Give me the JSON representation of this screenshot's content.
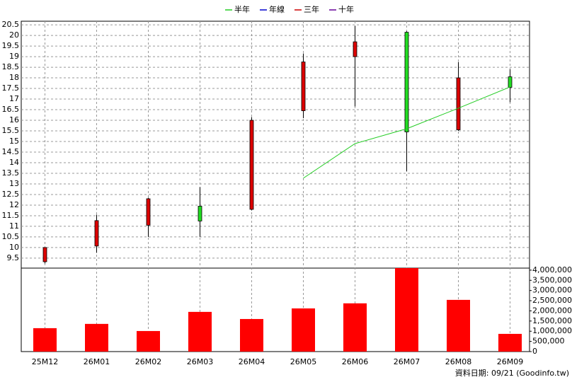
{
  "chart_data": [
    {
      "type": "candlestick",
      "categories": [
        "25M12",
        "26M01",
        "26M02",
        "26M03",
        "26M04",
        "26M05",
        "26M06",
        "26M07",
        "26M08",
        "26M09"
      ],
      "open": [
        9.33,
        10.07,
        11.05,
        11.95,
        11.8,
        16.45,
        19.0,
        20.15,
        15.55,
        18.05
      ],
      "high": [
        10.0,
        11.55,
        12.35,
        12.85,
        16.15,
        19.15,
        20.45,
        20.2,
        18.75,
        18.4
      ],
      "low": [
        9.25,
        9.75,
        10.5,
        10.5,
        11.75,
        16.1,
        16.65,
        13.6,
        15.5,
        16.85
      ],
      "close": [
        10.0,
        11.27,
        12.3,
        11.25,
        16.0,
        18.75,
        19.7,
        15.45,
        18.0,
        17.55
      ],
      "up_color": "#dd0000",
      "down_color": "#22dd22",
      "series": [
        {
          "name": "半年",
          "color": "#22cc22",
          "values": [
            null,
            null,
            null,
            null,
            null,
            13.27,
            14.9,
            15.6,
            16.57,
            17.57
          ]
        },
        {
          "name": "年線",
          "color": "#0000cc"
        },
        {
          "name": "三年",
          "color": "#cc0000"
        },
        {
          "name": "十年",
          "color": "#660099"
        }
      ],
      "ylim": [
        9.03,
        20.67
      ],
      "yticks": [
        9.5,
        10,
        10.5,
        11,
        11.5,
        12,
        12.5,
        13,
        13.5,
        14,
        14.5,
        15,
        15.5,
        16,
        16.5,
        17,
        17.5,
        18,
        18.5,
        19,
        19.5,
        20,
        20.5
      ],
      "grid": true,
      "legend": "top"
    },
    {
      "type": "bar",
      "values": [
        1150000,
        1360000,
        1010000,
        1950000,
        1600000,
        2120000,
        2370000,
        4100000,
        2540000,
        870000
      ],
      "color": "#ff0000",
      "ylim": [
        0,
        4100000
      ],
      "yticks": [
        {
          "value": 0,
          "label": "0"
        },
        {
          "value": 500000,
          "label": "500,000"
        },
        {
          "value": 1000000,
          "label": "1,000,000"
        },
        {
          "value": 1500000,
          "label": "1,500,000"
        },
        {
          "value": 2000000,
          "label": "2,000,000"
        },
        {
          "value": 2500000,
          "label": "2,500,000"
        },
        {
          "value": 3000000,
          "label": "3,000,000"
        },
        {
          "value": 3500000,
          "label": "3,500,000"
        },
        {
          "value": 4000000,
          "label": "4,000,000"
        }
      ]
    }
  ],
  "footer": "資料日期: 09/21 (Goodinfo.tw)"
}
